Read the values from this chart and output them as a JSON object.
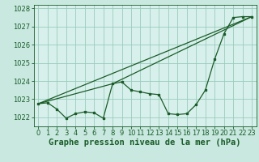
{
  "title": "Graphe pression niveau de la mer (hPa)",
  "background_color": "#c8e8e0",
  "plot_bg_color": "#d8f0ec",
  "grid_color": "#99ccbb",
  "line_color": "#1a5c28",
  "xlim": [
    -0.5,
    23.5
  ],
  "ylim": [
    1021.5,
    1028.2
  ],
  "xticks": [
    0,
    1,
    2,
    3,
    4,
    5,
    6,
    7,
    8,
    9,
    10,
    11,
    12,
    13,
    14,
    15,
    16,
    17,
    18,
    19,
    20,
    21,
    22,
    23
  ],
  "yticks": [
    1022,
    1023,
    1024,
    1025,
    1026,
    1027,
    1028
  ],
  "series1_x": [
    0,
    1,
    2,
    3,
    4,
    5,
    6,
    7,
    8,
    9,
    10,
    11,
    12,
    13,
    14,
    15,
    16,
    17,
    18,
    19,
    20,
    21,
    22,
    23
  ],
  "series1_y": [
    1022.75,
    1022.8,
    1022.45,
    1021.95,
    1022.2,
    1022.3,
    1022.25,
    1021.95,
    1023.85,
    1023.95,
    1023.5,
    1023.4,
    1023.3,
    1023.25,
    1022.2,
    1022.15,
    1022.2,
    1022.7,
    1023.5,
    1025.2,
    1026.6,
    1027.5,
    1027.55,
    1027.55
  ],
  "series2_x": [
    0,
    23
  ],
  "series2_y": [
    1022.75,
    1027.55
  ],
  "series3_x": [
    0,
    8,
    23
  ],
  "series3_y": [
    1022.75,
    1023.85,
    1027.55
  ],
  "title_fontsize": 7.5,
  "tick_fontsize": 6.0
}
